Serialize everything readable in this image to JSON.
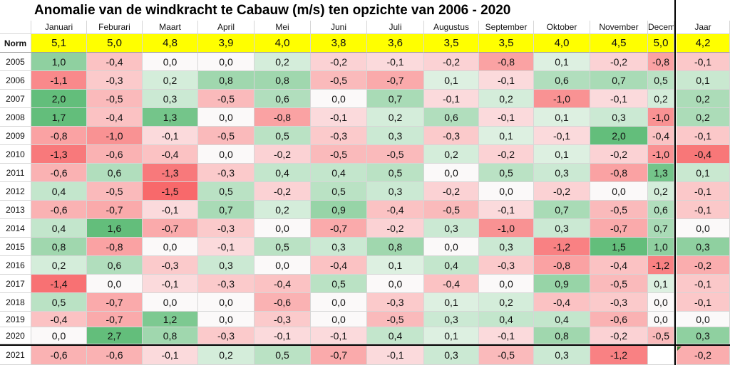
{
  "title": "Anomalie van de windkracht te Cabauw (m/s) ten opzichte van 2006 - 2020",
  "chart_data": {
    "type": "heatmap",
    "title": "Anomalie van de windkracht te Cabauw (m/s) ten opzichte van 2006 - 2020",
    "columns": [
      "Januari",
      "Feburari",
      "Maart",
      "April",
      "Mei",
      "Juni",
      "Juli",
      "Augustus",
      "September",
      "Oktober",
      "November",
      "December",
      "Jaar"
    ],
    "norm_label": "Norm",
    "norm": [
      "5,1",
      "5,0",
      "4,8",
      "3,9",
      "4,0",
      "3,8",
      "3,6",
      "3,5",
      "3,5",
      "4,0",
      "4,5",
      "5,0",
      "4,2"
    ],
    "rows": [
      {
        "year": "2005",
        "values": [
          "1,0",
          "-0,4",
          "0,0",
          "0,0",
          "0,2",
          "-0,2",
          "-0,1",
          "-0,2",
          "-0,8",
          "0,1",
          "-0,2",
          "-0,8",
          "-0,1"
        ]
      },
      {
        "year": "2006",
        "values": [
          "-1,1",
          "-0,3",
          "0,2",
          "0,8",
          "0,8",
          "-0,5",
          "-0,7",
          "0,1",
          "-0,1",
          "0,6",
          "0,7",
          "0,5",
          "0,1"
        ]
      },
      {
        "year": "2007",
        "values": [
          "2,0",
          "-0,5",
          "0,3",
          "-0,5",
          "0,6",
          "0,0",
          "0,7",
          "-0,1",
          "0,2",
          "-1,0",
          "-0,1",
          "0,2",
          "0,2"
        ]
      },
      {
        "year": "2008",
        "values": [
          "1,7",
          "-0,4",
          "1,3",
          "0,0",
          "-0,8",
          "-0,1",
          "0,2",
          "0,6",
          "-0,1",
          "0,1",
          "0,3",
          "-1,0",
          "0,2"
        ]
      },
      {
        "year": "2009",
        "values": [
          "-0,8",
          "-1,0",
          "-0,1",
          "-0,5",
          "0,5",
          "-0,3",
          "0,3",
          "-0,3",
          "0,1",
          "-0,1",
          "2,0",
          "-0,4",
          "-0,1"
        ]
      },
      {
        "year": "2010",
        "values": [
          "-1,3",
          "-0,6",
          "-0,4",
          "0,0",
          "-0,2",
          "-0,5",
          "-0,5",
          "0,2",
          "-0,2",
          "0,1",
          "-0,2",
          "-1,0",
          "-0,4"
        ]
      },
      {
        "year": "2011",
        "values": [
          "-0,6",
          "0,6",
          "-1,3",
          "-0,3",
          "0,4",
          "0,4",
          "0,5",
          "0,0",
          "0,5",
          "0,3",
          "-0,8",
          "1,3",
          "0,1"
        ]
      },
      {
        "year": "2012",
        "values": [
          "0,4",
          "-0,5",
          "-1,5",
          "0,5",
          "-0,2",
          "0,5",
          "0,3",
          "-0,2",
          "0,0",
          "-0,2",
          "0,0",
          "0,2",
          "-0,1"
        ]
      },
      {
        "year": "2013",
        "values": [
          "-0,6",
          "-0,7",
          "-0,1",
          "0,7",
          "0,2",
          "0,9",
          "-0,4",
          "-0,5",
          "-0,1",
          "0,7",
          "-0,5",
          "0,6",
          "-0,1"
        ]
      },
      {
        "year": "2014",
        "values": [
          "0,4",
          "1,6",
          "-0,7",
          "-0,3",
          "0,0",
          "-0,7",
          "-0,2",
          "0,3",
          "-1,0",
          "0,3",
          "-0,7",
          "0,7",
          "0,0"
        ]
      },
      {
        "year": "2015",
        "values": [
          "0,8",
          "-0,8",
          "0,0",
          "-0,1",
          "0,5",
          "0,3",
          "0,8",
          "0,0",
          "0,3",
          "-1,2",
          "1,5",
          "1,0",
          "0,3"
        ]
      },
      {
        "year": "2016",
        "values": [
          "0,2",
          "0,6",
          "-0,3",
          "0,3",
          "0,0",
          "-0,4",
          "0,1",
          "0,4",
          "-0,3",
          "-0,8",
          "-0,4",
          "-1,2",
          "-0,2"
        ]
      },
      {
        "year": "2017",
        "values": [
          "-1,4",
          "0,0",
          "-0,1",
          "-0,3",
          "-0,4",
          "0,5",
          "0,0",
          "-0,4",
          "0,0",
          "0,9",
          "-0,5",
          "0,1",
          "-0,1"
        ]
      },
      {
        "year": "2018",
        "values": [
          "0,5",
          "-0,7",
          "0,0",
          "0,0",
          "-0,6",
          "0,0",
          "-0,3",
          "0,1",
          "0,2",
          "-0,4",
          "-0,3",
          "0,0",
          "-0,1"
        ]
      },
      {
        "year": "2019",
        "values": [
          "-0,4",
          "-0,7",
          "1,2",
          "0,0",
          "-0,3",
          "0,0",
          "-0,5",
          "0,3",
          "0,4",
          "0,4",
          "-0,6",
          "0,0",
          "0,0"
        ]
      },
      {
        "year": "2020",
        "values": [
          "0,0",
          "2,7",
          "0,8",
          "-0,3",
          "-0,1",
          "-0,1",
          "0,4",
          "0,1",
          "-0,1",
          "0,8",
          "-0,2",
          "-0,5",
          "0,3"
        ]
      },
      {
        "year": "2021",
        "values": [
          "-0,6",
          "-0,6",
          "-0,1",
          "0,2",
          "0,5",
          "-0,7",
          "-0,1",
          "0,3",
          "-0,5",
          "0,3",
          "-1,2",
          "",
          "-0,2"
        ]
      }
    ],
    "colors": {
      "positive": "#63be7b",
      "negative": "#f8696b",
      "neutral": "#ffffff",
      "norm_fill": "#ffff00"
    }
  }
}
